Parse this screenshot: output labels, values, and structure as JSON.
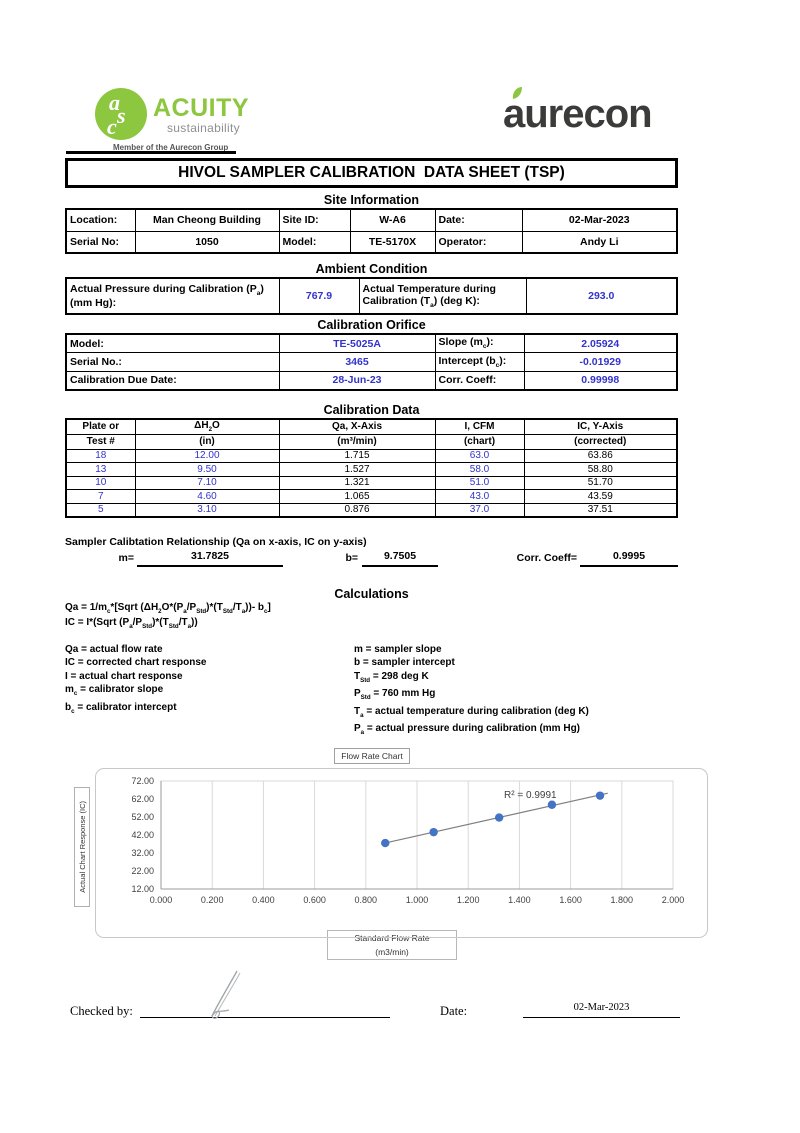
{
  "header": {
    "acuity": {
      "monogram": [
        "a",
        "s",
        "c"
      ],
      "name": "ACUITY",
      "tagline": "sustainability",
      "member_line": "Member of the Aurecon Group",
      "green": "#8dc63f"
    },
    "aurecon": {
      "name": "aurecon",
      "color": "#3b3b3a",
      "leaf_color": "#8dc63f"
    }
  },
  "title_bar": {
    "text": "HIVOL SAMPLER CALIBRATION  DATA SHEET (TSP)"
  },
  "site_info": {
    "heading": "Site Information",
    "row1": {
      "l1": "Location:",
      "v1": "Man Cheong Building",
      "l2": "Site ID:",
      "v2": "W-A6",
      "l3": "Date:",
      "v3": "02-Mar-2023"
    },
    "row2": {
      "l1": "Serial No:",
      "v1": "1050",
      "l2": "Model:",
      "v2": "TE-5170X",
      "l3": "Operator:",
      "v3": "Andy Li"
    }
  },
  "ambient": {
    "heading": "Ambient Condition",
    "label1a": "Actual Pressure during Calibration (P~a~)",
    "label1b": "(mm Hg):",
    "value1": "767.9",
    "label2a": "Actual Temperature during",
    "label2b": "Calibration (T~a~) (deg K):",
    "value2": "293.0"
  },
  "orifice": {
    "heading": "Calibration Orifice",
    "rows": [
      {
        "l1": "Model:",
        "v1": "TE-5025A",
        "l2": "Slope (m~c~):",
        "v2": "2.05924"
      },
      {
        "l1": "Serial No.:",
        "v1": "3465",
        "l2": "Intercept (b~c~):",
        "v2": "-0.01929"
      },
      {
        "l1": "Calibration Due Date:",
        "v1": "28-Jun-23",
        "l2": "Corr. Coeff:",
        "v2": "0.99998"
      }
    ]
  },
  "cal_data": {
    "heading": "Calibration Data",
    "headers": [
      [
        "Plate or",
        "Test #"
      ],
      [
        "ΔH~2~O",
        "(in)"
      ],
      [
        "Qa, X-Axis",
        "(m³/min)"
      ],
      [
        "I, CFM",
        "(chart)"
      ],
      [
        "IC, Y-Axis",
        "(corrected)"
      ]
    ],
    "rows": [
      [
        "18",
        "12.00",
        "1.715",
        "63.0",
        "63.86"
      ],
      [
        "13",
        "9.50",
        "1.527",
        "58.0",
        "58.80"
      ],
      [
        "10",
        "7.10",
        "1.321",
        "51.0",
        "51.70"
      ],
      [
        "7",
        "4.60",
        "1.065",
        "43.0",
        "43.59"
      ],
      [
        "5",
        "3.10",
        "0.876",
        "37.0",
        "37.51"
      ]
    ]
  },
  "relationship": {
    "heading": "Sampler Calibtation Relationship (Qa on x-axis, IC on y-axis)",
    "m_label": "m=",
    "m_value": "31.7825",
    "b_label": "b=",
    "b_value": "9.7505",
    "corr_label": "Corr. Coeff=",
    "corr_value": "0.9995"
  },
  "calculations": {
    "heading": "Calculations",
    "formula1": "Qa = 1/m~c~*[Sqrt (ΔH~2~O*(P~a~/P~Std~)*(T~Std~/T~a~))- b~c~]",
    "formula2": "IC = I*(Sqrt (P~a~/P~Std~)*(T~Std~/T~a~))",
    "left_defs": [
      "Qa = actual flow rate",
      "IC = corrected chart response",
      "I = actual chart response",
      "m~c~  = calibrator slope",
      "b~c~  = calibrator intercept"
    ],
    "right_defs": [
      "m = sampler slope",
      "b  = sampler intercept",
      "T~Std~ = 298 deg K",
      "P~Std~ = 760 mm Hg",
      "T~a~ = actual temperature during calibration (deg K)",
      "P~a~ = actual pressure during calibration (mm Hg)"
    ]
  },
  "chart_data": {
    "type": "scatter",
    "title": "Flow Rate Chart",
    "ylabel": "Actual Chart Response (IC)",
    "xlabel_line1": "Standard Flow Rate",
    "xlabel_line2": "(m3/min)",
    "x": [
      0.876,
      1.065,
      1.321,
      1.527,
      1.715
    ],
    "y": [
      37.51,
      43.59,
      51.7,
      58.8,
      63.86
    ],
    "trendline": {
      "slope": 31.7825,
      "intercept": 9.7505,
      "r2_label": "R² = 0.9991",
      "label_x": 1.34,
      "label_y": 62.5
    },
    "xlim": [
      0,
      2
    ],
    "ylim": [
      12,
      72
    ],
    "x_ticks": [
      "0.000",
      "0.200",
      "0.400",
      "0.600",
      "0.800",
      "1.000",
      "1.200",
      "1.400",
      "1.600",
      "1.800",
      "2.000"
    ],
    "y_ticks": [
      "12.00",
      "22.00",
      "32.00",
      "42.00",
      "52.00",
      "62.00",
      "72.00"
    ],
    "point_color": "#4472c4",
    "trend_color": "#7f7f7f",
    "grid_color": "#d9d9d9"
  },
  "footer": {
    "checked_label": "Checked by:",
    "date_label": "Date:",
    "date_value": "02-Mar-2023"
  }
}
